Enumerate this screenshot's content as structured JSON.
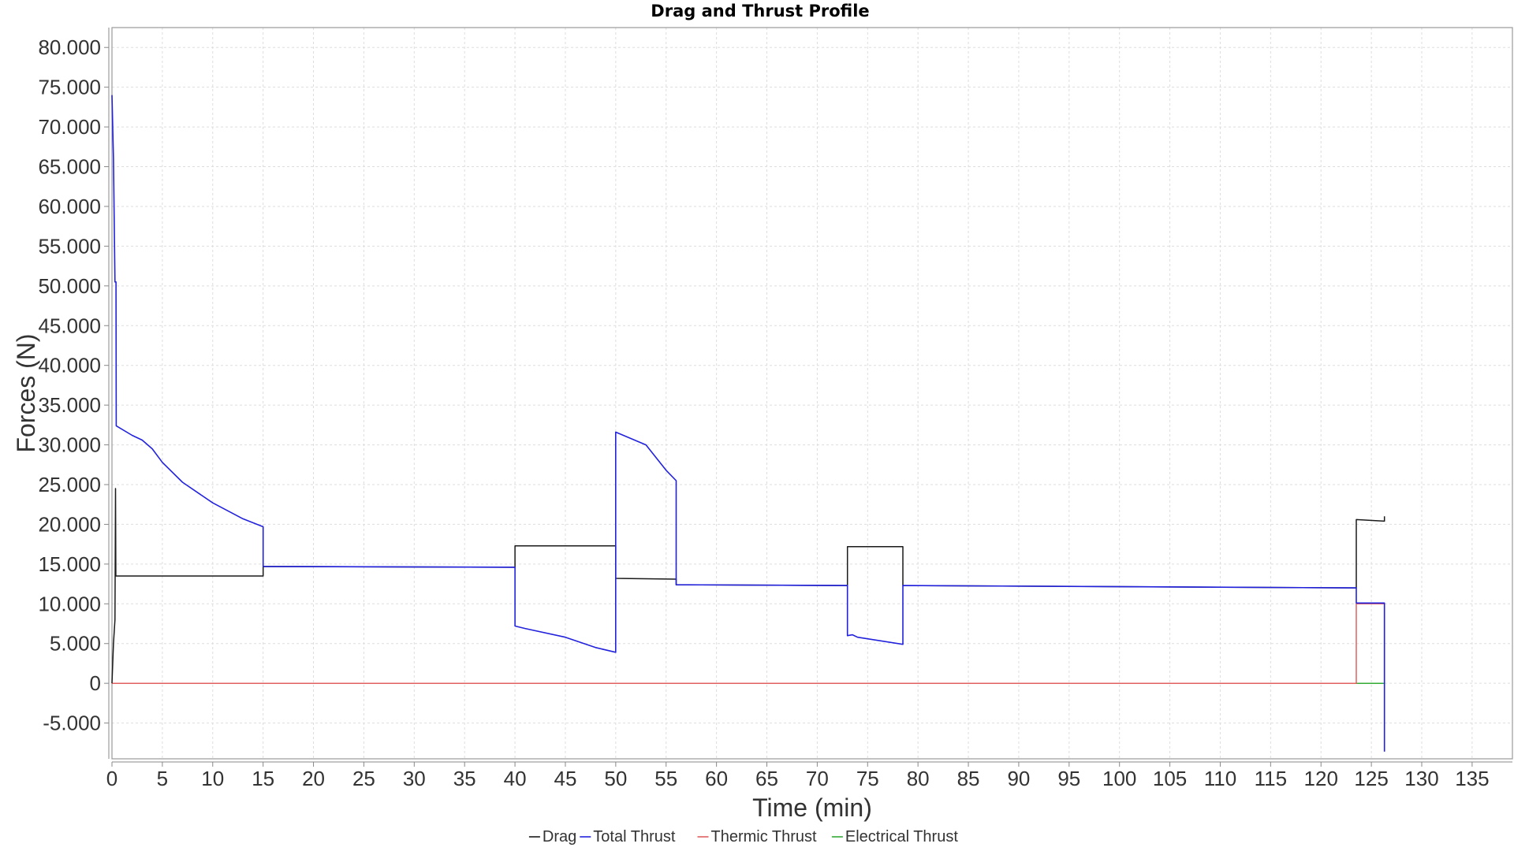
{
  "chart_data": {
    "type": "line",
    "title": "Drag and Thrust Profile",
    "xlabel": "Time (min)",
    "ylabel": "Forces (N)",
    "xlim": [
      0,
      139
    ],
    "ylim": [
      -9500,
      82500
    ],
    "x_ticks": [
      0,
      5,
      10,
      15,
      20,
      25,
      30,
      35,
      40,
      45,
      50,
      55,
      60,
      65,
      70,
      75,
      80,
      85,
      90,
      95,
      100,
      105,
      110,
      115,
      120,
      125,
      130,
      135
    ],
    "x_tick_labels": [
      "0",
      "5",
      "10",
      "15",
      "20",
      "25",
      "30",
      "35",
      "40",
      "45",
      "50",
      "55",
      "60",
      "65",
      "70",
      "75",
      "80",
      "85",
      "90",
      "95",
      "100",
      "105",
      "110",
      "115",
      "120",
      "125",
      "130",
      "135"
    ],
    "y_ticks": [
      -5000,
      0,
      5000,
      10000,
      15000,
      20000,
      25000,
      30000,
      35000,
      40000,
      45000,
      50000,
      55000,
      60000,
      65000,
      70000,
      75000,
      80000
    ],
    "y_tick_labels": [
      "-5.000",
      "0",
      "5.000",
      "10.000",
      "15.000",
      "20.000",
      "25.000",
      "30.000",
      "35.000",
      "40.000",
      "45.000",
      "50.000",
      "55.000",
      "60.000",
      "65.000",
      "70.000",
      "75.000",
      "80.000"
    ],
    "grid": true,
    "legend_position": "bottom-center",
    "series": [
      {
        "name": "Drag",
        "color": "#1a1a1a",
        "x": [
          0,
          0.15,
          0.3,
          0.35,
          0.38,
          0.4,
          15,
          15,
          40,
          40,
          50,
          50,
          56,
          56,
          73,
          73,
          78.5,
          78.5,
          123.5,
          123.5,
          126.3,
          126.3
        ],
        "y": [
          0,
          5000,
          8000,
          24500,
          13500,
          13500,
          13500,
          14700,
          14600,
          17300,
          17300,
          13200,
          13100,
          12400,
          12300,
          17200,
          17200,
          12300,
          12000,
          20600,
          20400,
          21000
        ]
      },
      {
        "name": "Total Thrust",
        "color": "#2222dd",
        "x": [
          0,
          0.15,
          0.3,
          0.4,
          0.42,
          2,
          3,
          4,
          5,
          7,
          10,
          13,
          15,
          15,
          40,
          40,
          41,
          45,
          48,
          50,
          50,
          53,
          55,
          56,
          56,
          73,
          73,
          73.5,
          74,
          78.5,
          78.5,
          123.5,
          123.5,
          126.3,
          126.3
        ],
        "y": [
          74000,
          66000,
          50500,
          50500,
          32400,
          31200,
          30600,
          29500,
          27800,
          25300,
          22700,
          20700,
          19700,
          14700,
          14600,
          7200,
          6900,
          5800,
          4500,
          3900,
          31600,
          30000,
          26800,
          25500,
          12400,
          12300,
          6000,
          6100,
          5800,
          4900,
          12300,
          12000,
          10100,
          10100,
          -8600
        ]
      },
      {
        "name": "Thermic Thrust",
        "color": "#e06060",
        "x": [
          0,
          123.5,
          123.5,
          126.3,
          126.3
        ],
        "y": [
          0,
          0,
          10000,
          10000,
          0
        ]
      },
      {
        "name": "Electrical Thrust",
        "color": "#33aa33",
        "x": [
          0,
          126.3
        ],
        "y": [
          0,
          0
        ]
      }
    ]
  }
}
